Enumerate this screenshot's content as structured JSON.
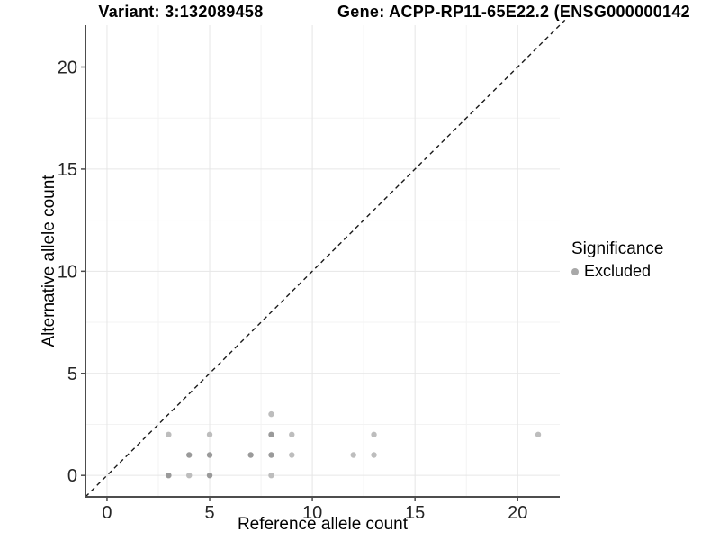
{
  "titles": {
    "variant": "Variant: 3:132089458",
    "gene": "Gene: ACPP-RP11-65E22.2 (ENSG000000142"
  },
  "legend": {
    "title": "Significance",
    "position": "right",
    "items": [
      {
        "label": "Excluded",
        "color": "#a8a8a8"
      }
    ]
  },
  "colors": {
    "background": "#ffffff",
    "point_dark": "#9a9a9a",
    "point_light": "#bdbdbd",
    "legend_dot": "#a8a8a8",
    "grid_major": "#e6e6e6",
    "grid_minor": "#f3f3f3",
    "axis": "#4d4d4d",
    "identity_line": "#1a1a1a",
    "text": "#262626"
  },
  "chart_data": {
    "type": "scatter",
    "title_left": "Variant: 3:132089458",
    "title_right": "Gene: ACPP-RP11-65E22.2 (ENSG000000142",
    "xlabel": "Reference allele count",
    "ylabel": "Alternative allele count",
    "xlim": [
      -1.05,
      22.05
    ],
    "ylim": [
      -1.05,
      22.05
    ],
    "x_major_ticks": [
      0,
      5,
      10,
      15,
      20
    ],
    "y_major_ticks": [
      0,
      5,
      10,
      15,
      20
    ],
    "minor_gridlines": [
      2.5,
      7.5,
      12.5,
      17.5
    ],
    "grid": true,
    "legend_position": "right",
    "identity_line": {
      "style": "dashed",
      "equation": "y = x",
      "from": -1.05,
      "to": 22.3
    },
    "series": [
      {
        "name": "Excluded",
        "points": [
          {
            "x": 3,
            "y": 0,
            "shade": "dark"
          },
          {
            "x": 3,
            "y": 2,
            "shade": "light"
          },
          {
            "x": 4,
            "y": 0,
            "shade": "light"
          },
          {
            "x": 4,
            "y": 1,
            "shade": "dark"
          },
          {
            "x": 5,
            "y": 0,
            "shade": "dark"
          },
          {
            "x": 5,
            "y": 1,
            "shade": "dark"
          },
          {
            "x": 5,
            "y": 2,
            "shade": "light"
          },
          {
            "x": 7,
            "y": 1,
            "shade": "dark"
          },
          {
            "x": 8,
            "y": 0,
            "shade": "light"
          },
          {
            "x": 8,
            "y": 1,
            "shade": "dark"
          },
          {
            "x": 8,
            "y": 2,
            "shade": "dark"
          },
          {
            "x": 8,
            "y": 3,
            "shade": "light"
          },
          {
            "x": 9,
            "y": 1,
            "shade": "light"
          },
          {
            "x": 9,
            "y": 2,
            "shade": "light"
          },
          {
            "x": 12,
            "y": 1,
            "shade": "light"
          },
          {
            "x": 13,
            "y": 1,
            "shade": "light"
          },
          {
            "x": 13,
            "y": 2,
            "shade": "light"
          },
          {
            "x": 21,
            "y": 2,
            "shade": "light"
          }
        ]
      }
    ]
  }
}
